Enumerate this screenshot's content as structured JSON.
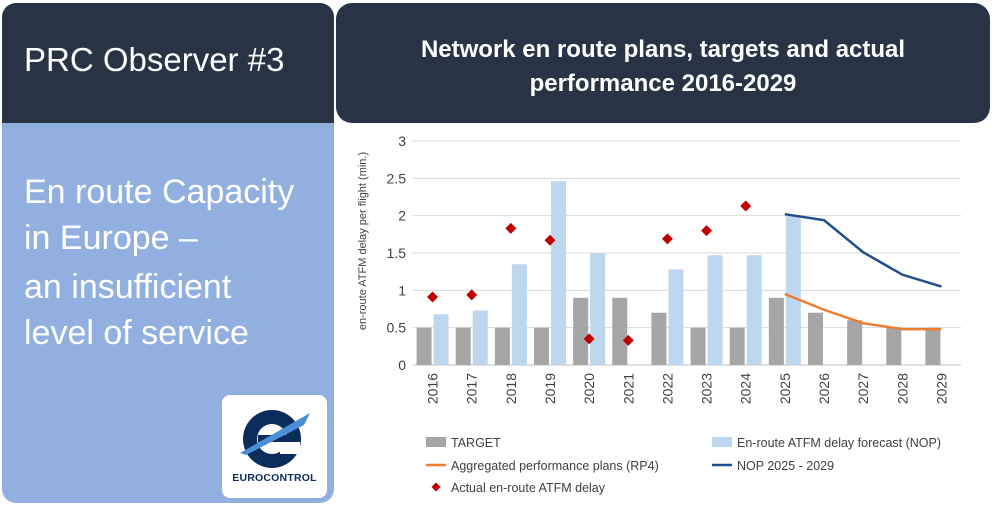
{
  "header_left": {
    "title": "PRC Observer #3"
  },
  "sidebar": {
    "lines": [
      "En route Capacity",
      "in Europe –",
      "an insufficient",
      "level of service"
    ]
  },
  "logo": {
    "text": "EUROCONTROL",
    "icon": "eurocontrol-logo"
  },
  "header_right": {
    "title_line1": "Network en route plans, targets and actual",
    "title_line2": "performance 2016-2029"
  },
  "colors": {
    "dark": "#283445",
    "sidebar": "#91b0e0",
    "target": "#a6a6a6",
    "forecast": "#bdd7ee",
    "plans": "#ed7d31",
    "nop": "#1f4e8c",
    "actual": "#c00000"
  },
  "chart_data": {
    "type": "bar",
    "ylabel": "en-route ATFM delay per flight (min.)",
    "ylim": [
      0,
      3
    ],
    "yticks": [
      "0",
      "0.5",
      "1",
      "1.5",
      "2",
      "2.5",
      "3"
    ],
    "categories": [
      "2016",
      "2017",
      "2018",
      "2019",
      "2020",
      "2021",
      "2022",
      "2023",
      "2024",
      "2025",
      "2026",
      "2027",
      "2028",
      "2029"
    ],
    "grid": true,
    "legend_position": "bottom",
    "series": [
      {
        "name": "TARGET",
        "type": "bar",
        "values": [
          0.5,
          0.5,
          0.5,
          0.5,
          0.9,
          0.9,
          0.7,
          0.5,
          0.5,
          0.9,
          0.7,
          0.6,
          0.5,
          0.5
        ]
      },
      {
        "name": "En-route ATFM delay forecast (NOP)",
        "type": "bar",
        "values": [
          0.68,
          0.73,
          1.35,
          2.46,
          1.5,
          null,
          1.28,
          1.47,
          1.47,
          2.0,
          null,
          null,
          null,
          null
        ]
      },
      {
        "name": "Aggregated performance plans (RP4)",
        "type": "line",
        "values": [
          null,
          null,
          null,
          null,
          null,
          null,
          null,
          null,
          null,
          0.95,
          0.74,
          0.56,
          0.48,
          0.48
        ]
      },
      {
        "name": "NOP 2025 - 2029",
        "type": "line",
        "values": [
          null,
          null,
          null,
          null,
          null,
          null,
          null,
          null,
          null,
          2.02,
          1.94,
          1.51,
          1.21,
          1.05
        ]
      },
      {
        "name": "Actual en-route ATFM delay",
        "type": "scatter",
        "values": [
          0.91,
          0.94,
          1.83,
          1.67,
          0.35,
          0.33,
          1.69,
          1.8,
          2.13,
          null,
          null,
          null,
          null,
          null
        ]
      }
    ]
  }
}
